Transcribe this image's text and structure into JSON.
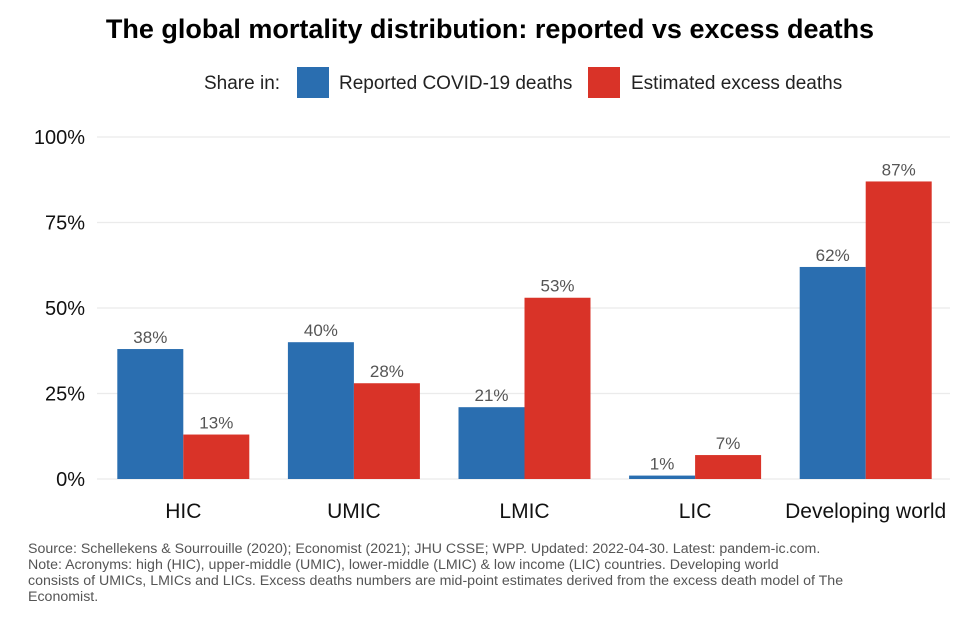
{
  "chart_data": {
    "type": "bar",
    "title": "The global mortality distribution: reported vs excess deaths",
    "legend_title": "Share in:",
    "legend_position": "top",
    "categories": [
      "HIC",
      "UMIC",
      "LMIC",
      "LIC",
      "Developing world"
    ],
    "series": [
      {
        "name": "Reported COVID-19 deaths",
        "color": "#2a6eb0",
        "values": [
          38,
          40,
          21,
          1,
          62
        ],
        "labels": [
          "38%",
          "40%",
          "21%",
          "1%",
          "62%"
        ]
      },
      {
        "name": "Estimated excess deaths",
        "color": "#d93328",
        "values": [
          13,
          28,
          53,
          7,
          87
        ],
        "labels": [
          "13%",
          "28%",
          "53%",
          "7%",
          "87%"
        ]
      }
    ],
    "xlabel": "",
    "ylabel": "",
    "ylim": [
      0,
      100
    ],
    "yticks": [
      0,
      25,
      50,
      75,
      100
    ],
    "ytick_labels": [
      "0%",
      "25%",
      "50%",
      "75%",
      "100%"
    ],
    "grid": true
  },
  "caption": {
    "lines": [
      "Source: Schellekens & Sourrouille (2020); Economist (2021); JHU CSSE; WPP. Updated: 2022-04-30. Latest: pandem-ic.com.",
      "Note: Acronyms: high (HIC), upper-middle (UMIC), lower-middle (LMIC) & low income (LIC) countries. Developing world",
      "consists of UMICs, LMICs and LICs. Excess deaths numbers are mid-point estimates derived from the excess death model of The",
      "Economist."
    ]
  }
}
